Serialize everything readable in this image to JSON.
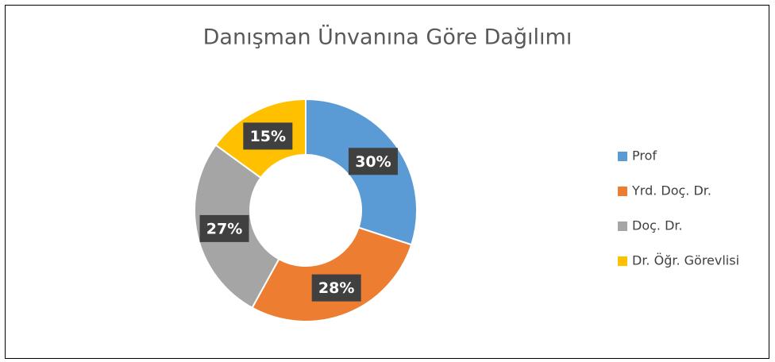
{
  "chart_data": {
    "type": "donut",
    "title": "Danışman Ünvanına Göre Dağılımı",
    "categories": [
      "Prof",
      "Yrd. Doç. Dr.",
      "Doç. Dr.",
      "Dr. Öğr. Görevlisi"
    ],
    "values": [
      30,
      28,
      27,
      15
    ],
    "value_labels": [
      "30%",
      "28%",
      "27%",
      "15%"
    ],
    "colors": [
      "#5b9bd5",
      "#ed7d31",
      "#a5a5a5",
      "#ffc000"
    ],
    "legend": "right"
  }
}
